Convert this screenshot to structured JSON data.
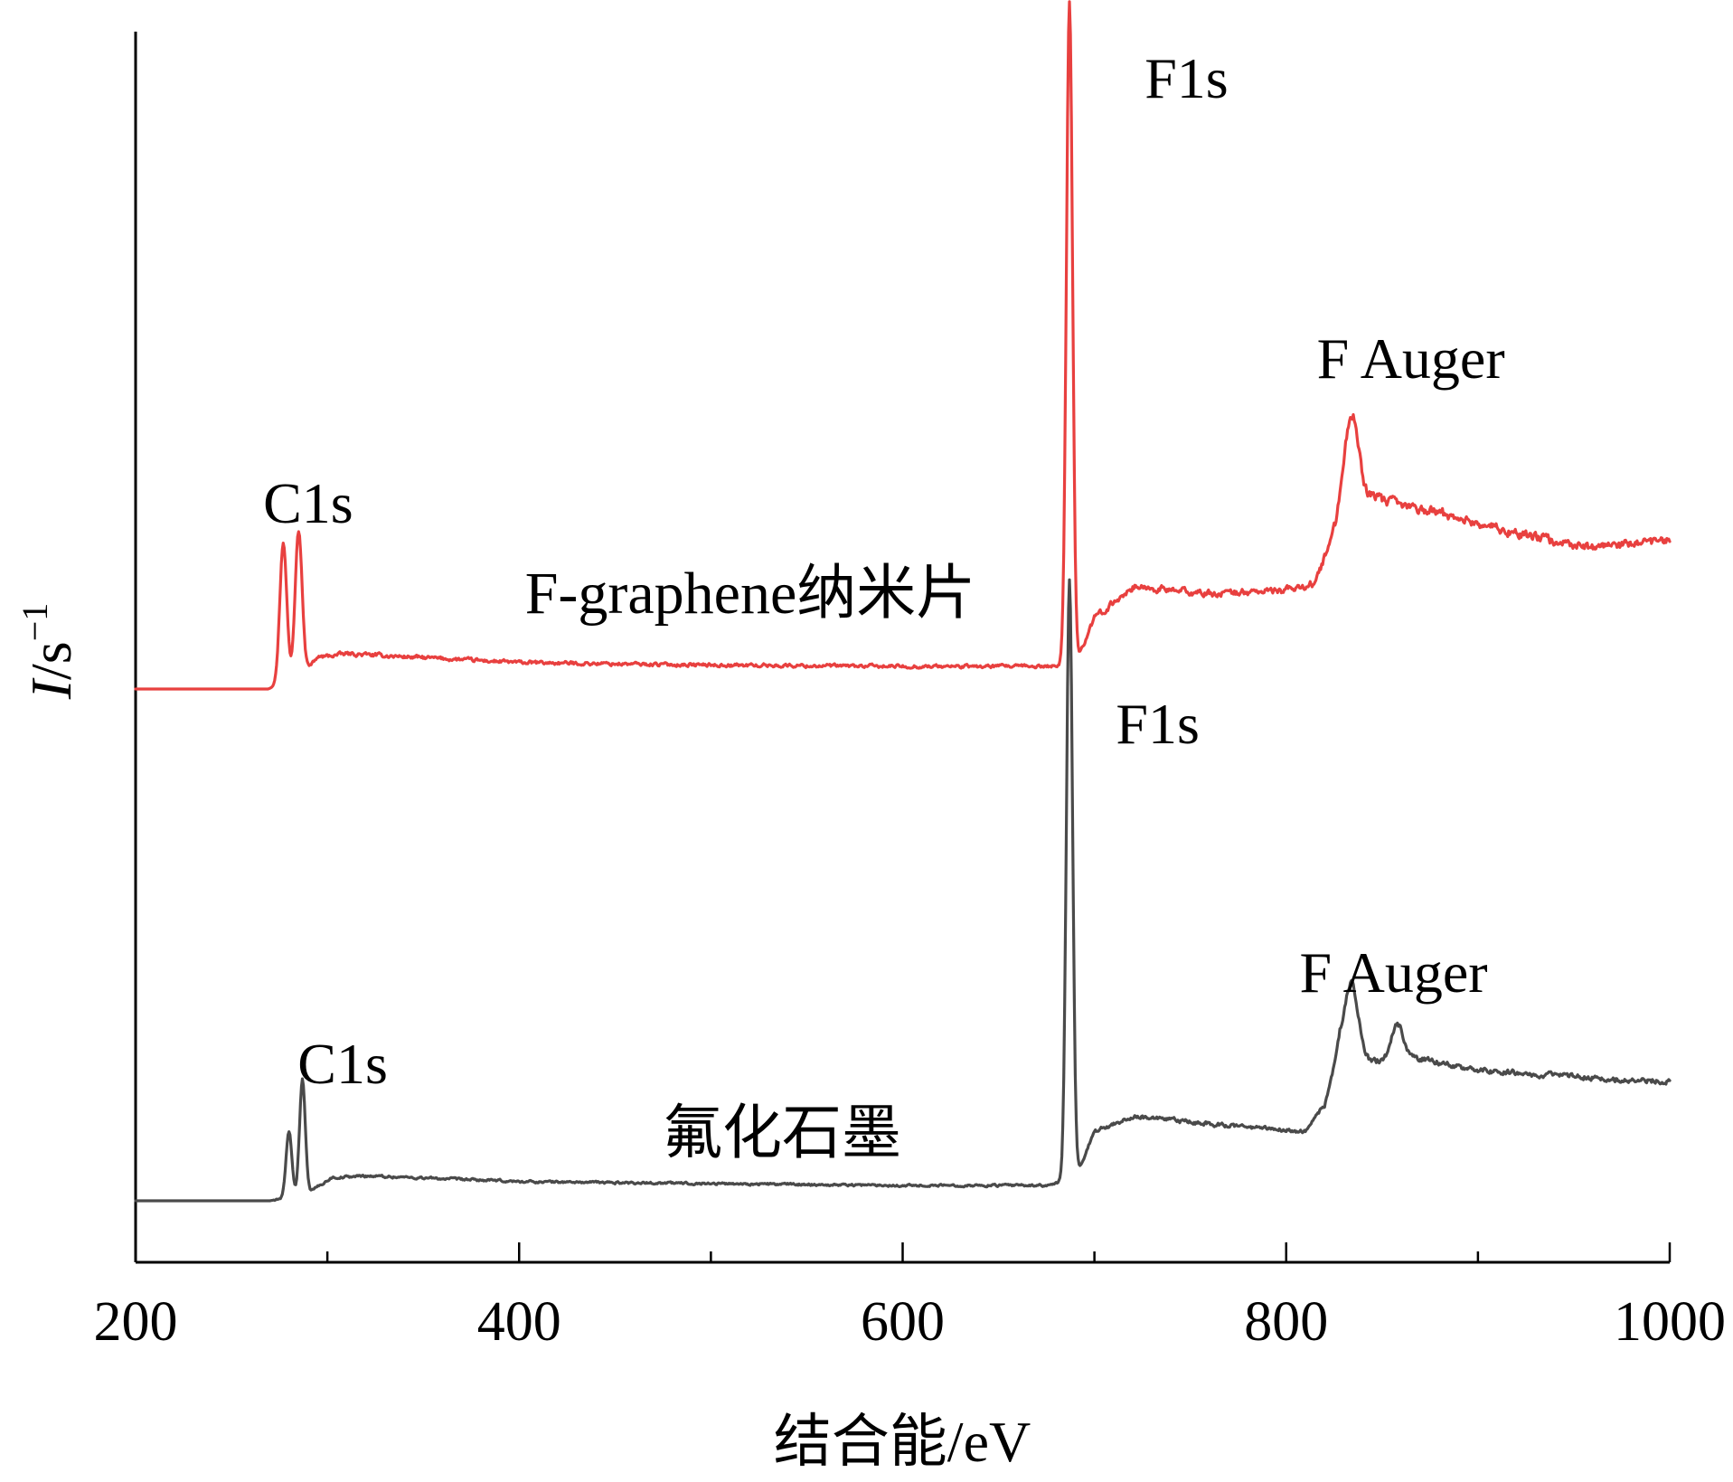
{
  "chart_data": {
    "type": "line",
    "xlabel": "结合能/eV",
    "ylabel_italic": "I",
    "ylabel_unit": "/s",
    "ylabel_exp": "−1",
    "xlim": [
      200,
      1000
    ],
    "xticks_major": [
      200,
      400,
      600,
      800,
      1000
    ],
    "xticks_minor": [
      300,
      500,
      700,
      900
    ],
    "y_values_shown": false,
    "grid": false,
    "series": [
      {
        "name": "F-graphene纳米片",
        "color": "#e8403f",
        "baseline_shape": [
          [
            200,
            0.0
          ],
          [
            269,
            0.0
          ],
          [
            285,
            0.03
          ],
          [
            295,
            0.09
          ],
          [
            310,
            0.1
          ],
          [
            400,
            0.075
          ],
          [
            500,
            0.068
          ],
          [
            600,
            0.064
          ],
          [
            675,
            0.064
          ],
          [
            690,
            0.07
          ],
          [
            700,
            0.2
          ],
          [
            720,
            0.29
          ],
          [
            760,
            0.27
          ],
          [
            800,
            0.28
          ],
          [
            815,
            0.3
          ],
          [
            822,
            0.4
          ],
          [
            830,
            0.52
          ],
          [
            840,
            0.55
          ],
          [
            860,
            0.52
          ],
          [
            880,
            0.5
          ],
          [
            920,
            0.44
          ],
          [
            960,
            0.4
          ],
          [
            1000,
            0.42
          ]
        ],
        "peaks": [
          {
            "x": 277,
            "height": 0.4,
            "width": 1.8
          },
          {
            "x": 285,
            "height": 0.42,
            "width": 1.8
          },
          {
            "x": 687,
            "height": 1.88,
            "width": 1.6
          },
          {
            "x": 834,
            "height": 0.25,
            "width": 3.5
          }
        ],
        "noise": 0.018
      },
      {
        "name": "氟化石墨",
        "color": "#4a4a4a",
        "baseline_shape": [
          [
            200,
            0.0
          ],
          [
            270,
            0.0
          ],
          [
            290,
            0.02
          ],
          [
            302,
            0.06
          ],
          [
            320,
            0.065
          ],
          [
            400,
            0.05
          ],
          [
            500,
            0.045
          ],
          [
            600,
            0.04
          ],
          [
            677,
            0.04
          ],
          [
            690,
            0.06
          ],
          [
            700,
            0.18
          ],
          [
            720,
            0.22
          ],
          [
            760,
            0.2
          ],
          [
            810,
            0.18
          ],
          [
            820,
            0.25
          ],
          [
            828,
            0.4
          ],
          [
            845,
            0.36
          ],
          [
            860,
            0.38
          ],
          [
            900,
            0.34
          ],
          [
            960,
            0.32
          ],
          [
            1000,
            0.31
          ]
        ],
        "peaks": [
          {
            "x": 280,
            "height": 0.17,
            "width": 1.5
          },
          {
            "x": 287,
            "height": 0.3,
            "width": 1.5
          },
          {
            "x": 687,
            "height": 1.56,
            "width": 1.6
          },
          {
            "x": 834,
            "height": 0.18,
            "width": 3.5
          },
          {
            "x": 858,
            "height": 0.08,
            "width": 3.0
          }
        ],
        "noise": 0.012
      }
    ],
    "annotations": [
      {
        "series": 0,
        "text": "C1s",
        "x": 290
      },
      {
        "series": 0,
        "text": "F1s",
        "x": 748
      },
      {
        "series": 0,
        "text": "F Auger",
        "x": 865
      },
      {
        "series": 1,
        "text": "C1s",
        "x": 308
      },
      {
        "series": 1,
        "text": "F1s",
        "x": 733
      },
      {
        "series": 1,
        "text": "F Auger",
        "x": 856
      }
    ]
  }
}
